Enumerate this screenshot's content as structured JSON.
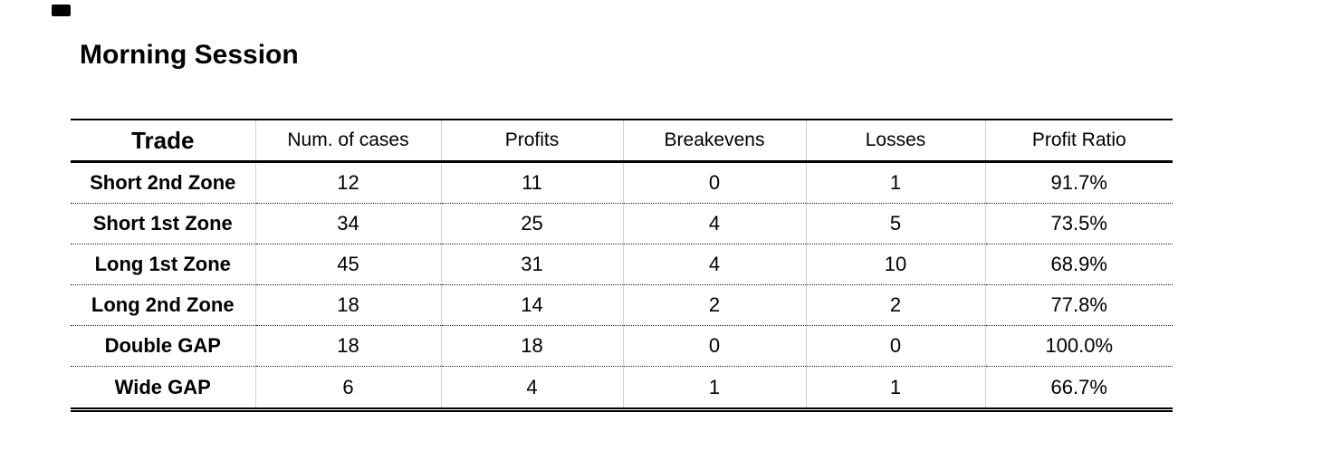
{
  "title": "Morning Session",
  "chart_data": {
    "type": "table",
    "title": "Morning Session",
    "columns": [
      "Trade",
      "Num. of cases",
      "Profits",
      "Breakevens",
      "Losses",
      "Profit Ratio"
    ],
    "rows": [
      [
        "Short 2nd Zone",
        "12",
        "11",
        "0",
        "1",
        "91.7%"
      ],
      [
        "Short 1st Zone",
        "34",
        "25",
        "4",
        "5",
        "73.5%"
      ],
      [
        "Long 1st Zone",
        "45",
        "31",
        "4",
        "10",
        "68.9%"
      ],
      [
        "Long 2nd Zone",
        "18",
        "14",
        "2",
        "2",
        "77.8%"
      ],
      [
        "Double GAP",
        "18",
        "18",
        "0",
        "0",
        "100.0%"
      ],
      [
        "Wide GAP",
        "6",
        "4",
        "1",
        "1",
        "66.7%"
      ]
    ],
    "layout": {
      "header_underline": "thick-solid",
      "row_separator": "dotted",
      "bottom_border": "double",
      "grid_vertical": true
    },
    "colors": {
      "text": "#000000",
      "gridline": "#d0d0d0",
      "background": "#ffffff"
    }
  }
}
